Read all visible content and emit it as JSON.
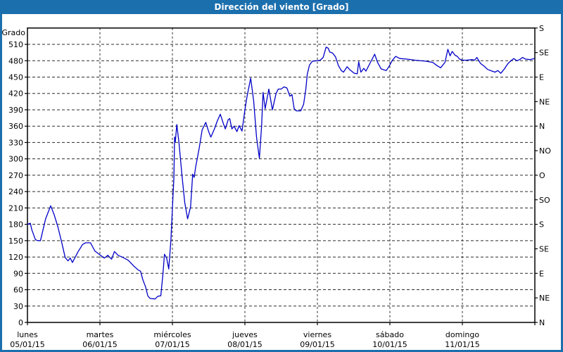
{
  "window": {
    "title": "Dirección del viento [Grado]"
  },
  "colors": {
    "title_bar": "#1c6fad",
    "title_text": "#ffffff",
    "frame_border": "#1c6fad",
    "background": "#ffffff",
    "line": "#0000c8",
    "grid": "#2b2b2b",
    "axis": "#000000",
    "label_text": "#000000"
  },
  "chart_data": {
    "type": "line",
    "title": "Dirección del viento [Grado]",
    "grid": true,
    "legend": false,
    "y_left": {
      "axis_label": "Grado",
      "min": 0,
      "max": 540,
      "tick_step": 30,
      "tick_labels": [
        "0",
        "30",
        "60",
        "90",
        "120",
        "150",
        "180",
        "210",
        "240",
        "270",
        "300",
        "330",
        "360",
        "390",
        "420",
        "450",
        "480",
        "510"
      ]
    },
    "y_right": {
      "tick_step": 45,
      "ticks": [
        {
          "deg": 540,
          "label": "S"
        },
        {
          "deg": 495,
          "label": "SE"
        },
        {
          "deg": 450,
          "label": "E"
        },
        {
          "deg": 405,
          "label": "NE"
        },
        {
          "deg": 360,
          "label": "N"
        },
        {
          "deg": 315,
          "label": "NO"
        },
        {
          "deg": 270,
          "label": "O"
        },
        {
          "deg": 225,
          "label": "SO"
        },
        {
          "deg": 180,
          "label": "S"
        },
        {
          "deg": 135,
          "label": "SE"
        },
        {
          "deg": 90,
          "label": "E"
        },
        {
          "deg": 45,
          "label": "NE"
        },
        {
          "deg": 0,
          "label": "N"
        }
      ]
    },
    "x": {
      "unit": "days",
      "range": [
        0,
        7
      ],
      "days": [
        {
          "name": "lunes",
          "date": "05/01/15"
        },
        {
          "name": "martes",
          "date": "06/01/15"
        },
        {
          "name": "miércoles",
          "date": "07/01/15"
        },
        {
          "name": "jueves",
          "date": "08/01/15"
        },
        {
          "name": "viernes",
          "date": "09/01/15"
        },
        {
          "name": "sábado",
          "date": "10/01/15"
        },
        {
          "name": "domingo",
          "date": "11/01/15"
        }
      ]
    },
    "series": [
      {
        "name": "Dirección del viento",
        "color": "#0000c8",
        "points": [
          [
            0.0,
            180
          ],
          [
            0.04,
            182
          ],
          [
            0.06,
            170
          ],
          [
            0.11,
            152
          ],
          [
            0.14,
            150
          ],
          [
            0.18,
            150
          ],
          [
            0.25,
            190
          ],
          [
            0.32,
            214
          ],
          [
            0.37,
            197
          ],
          [
            0.42,
            175
          ],
          [
            0.48,
            143
          ],
          [
            0.52,
            119
          ],
          [
            0.56,
            113
          ],
          [
            0.59,
            118
          ],
          [
            0.62,
            110
          ],
          [
            0.7,
            130
          ],
          [
            0.76,
            143
          ],
          [
            0.8,
            146
          ],
          [
            0.87,
            146
          ],
          [
            0.93,
            131
          ],
          [
            1.0,
            124
          ],
          [
            1.06,
            118
          ],
          [
            1.11,
            123
          ],
          [
            1.16,
            116
          ],
          [
            1.2,
            130
          ],
          [
            1.25,
            123
          ],
          [
            1.32,
            119
          ],
          [
            1.39,
            114
          ],
          [
            1.47,
            103
          ],
          [
            1.53,
            96
          ],
          [
            1.56,
            94
          ],
          [
            1.59,
            79
          ],
          [
            1.63,
            65
          ],
          [
            1.66,
            49
          ],
          [
            1.69,
            44
          ],
          [
            1.76,
            43
          ],
          [
            1.8,
            48
          ],
          [
            1.84,
            49
          ],
          [
            1.87,
            90
          ],
          [
            1.89,
            125
          ],
          [
            1.92,
            118
          ],
          [
            1.95,
            98
          ],
          [
            1.98,
            152
          ],
          [
            2.0,
            210
          ],
          [
            2.02,
            265
          ],
          [
            2.03,
            340
          ],
          [
            2.04,
            331
          ],
          [
            2.06,
            363
          ],
          [
            2.09,
            330
          ],
          [
            2.13,
            272
          ],
          [
            2.17,
            220
          ],
          [
            2.21,
            190
          ],
          [
            2.25,
            212
          ],
          [
            2.28,
            272
          ],
          [
            2.3,
            266
          ],
          [
            2.32,
            285
          ],
          [
            2.37,
            320
          ],
          [
            2.41,
            353
          ],
          [
            2.46,
            367
          ],
          [
            2.5,
            350
          ],
          [
            2.53,
            340
          ],
          [
            2.58,
            355
          ],
          [
            2.62,
            370
          ],
          [
            2.66,
            382
          ],
          [
            2.71,
            362
          ],
          [
            2.73,
            355
          ],
          [
            2.77,
            372
          ],
          [
            2.79,
            374
          ],
          [
            2.82,
            355
          ],
          [
            2.85,
            360
          ],
          [
            2.89,
            350
          ],
          [
            2.92,
            361
          ],
          [
            2.96,
            351
          ],
          [
            3.0,
            390
          ],
          [
            3.03,
            415
          ],
          [
            3.08,
            448
          ],
          [
            3.12,
            407
          ],
          [
            3.16,
            340
          ],
          [
            3.2,
            301
          ],
          [
            3.23,
            360
          ],
          [
            3.25,
            422
          ],
          [
            3.28,
            392
          ],
          [
            3.33,
            428
          ],
          [
            3.38,
            390
          ],
          [
            3.43,
            420
          ],
          [
            3.46,
            428
          ],
          [
            3.5,
            428
          ],
          [
            3.54,
            432
          ],
          [
            3.58,
            430
          ],
          [
            3.62,
            415
          ],
          [
            3.65,
            418
          ],
          [
            3.68,
            392
          ],
          [
            3.71,
            388
          ],
          [
            3.77,
            388
          ],
          [
            3.81,
            400
          ],
          [
            3.84,
            427
          ],
          [
            3.86,
            455
          ],
          [
            3.89,
            472
          ],
          [
            3.93,
            479
          ],
          [
            3.99,
            480
          ],
          [
            4.04,
            481
          ],
          [
            4.08,
            486
          ],
          [
            4.12,
            505
          ],
          [
            4.15,
            503
          ],
          [
            4.17,
            496
          ],
          [
            4.21,
            494
          ],
          [
            4.25,
            487
          ],
          [
            4.29,
            471
          ],
          [
            4.33,
            462
          ],
          [
            4.36,
            459
          ],
          [
            4.41,
            469
          ],
          [
            4.45,
            463
          ],
          [
            4.51,
            457
          ],
          [
            4.55,
            456
          ],
          [
            4.57,
            478
          ],
          [
            4.6,
            459
          ],
          [
            4.64,
            466
          ],
          [
            4.67,
            461
          ],
          [
            4.74,
            479
          ],
          [
            4.79,
            492
          ],
          [
            4.83,
            477
          ],
          [
            4.88,
            465
          ],
          [
            4.95,
            462
          ],
          [
            4.99,
            470
          ],
          [
            5.03,
            480
          ],
          [
            5.08,
            488
          ],
          [
            5.14,
            484
          ],
          [
            5.23,
            483
          ],
          [
            5.35,
            481
          ],
          [
            5.5,
            479
          ],
          [
            5.59,
            477
          ],
          [
            5.65,
            471
          ],
          [
            5.7,
            467
          ],
          [
            5.76,
            477
          ],
          [
            5.8,
            501
          ],
          [
            5.83,
            489
          ],
          [
            5.86,
            497
          ],
          [
            5.9,
            490
          ],
          [
            5.93,
            488
          ],
          [
            5.96,
            483
          ],
          [
            6.0,
            481
          ],
          [
            6.06,
            481
          ],
          [
            6.13,
            482
          ],
          [
            6.17,
            481
          ],
          [
            6.2,
            486
          ],
          [
            6.25,
            475
          ],
          [
            6.3,
            470
          ],
          [
            6.35,
            464
          ],
          [
            6.41,
            461
          ],
          [
            6.45,
            459
          ],
          [
            6.49,
            462
          ],
          [
            6.53,
            457
          ],
          [
            6.58,
            465
          ],
          [
            6.63,
            475
          ],
          [
            6.68,
            481
          ],
          [
            6.71,
            484
          ],
          [
            6.75,
            480
          ],
          [
            6.79,
            482
          ],
          [
            6.83,
            486
          ],
          [
            6.87,
            483
          ],
          [
            6.93,
            482
          ],
          [
            6.99,
            484
          ]
        ]
      }
    ]
  }
}
